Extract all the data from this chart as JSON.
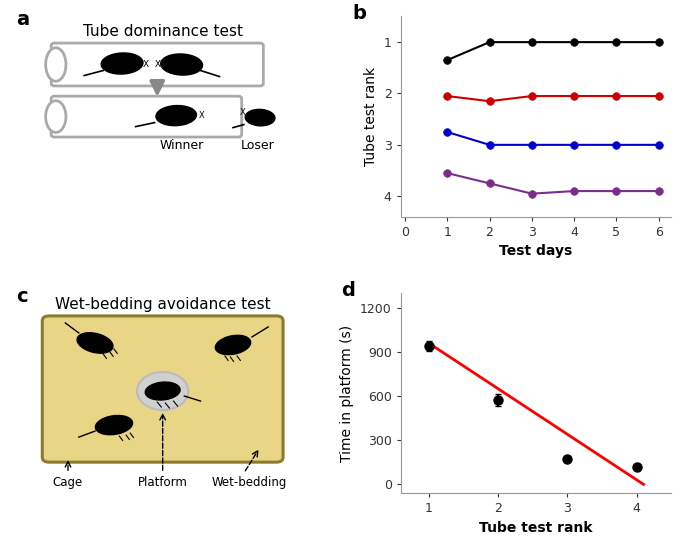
{
  "panel_b": {
    "days": [
      1,
      2,
      3,
      4,
      5,
      6
    ],
    "rank1": [
      1.35,
      1.0,
      1.0,
      1.0,
      1.0,
      1.0
    ],
    "rank2": [
      2.05,
      2.15,
      2.05,
      2.05,
      2.05,
      2.05
    ],
    "rank3": [
      2.75,
      3.0,
      3.0,
      3.0,
      3.0,
      3.0
    ],
    "rank4": [
      3.55,
      3.75,
      3.95,
      3.9,
      3.9,
      3.9
    ],
    "colors": [
      "#000000",
      "#cc0000",
      "#0000cc",
      "#7b2d8b"
    ],
    "yticks": [
      1,
      2,
      3,
      4
    ],
    "xticks": [
      0,
      1,
      2,
      3,
      4,
      5,
      6
    ],
    "xlabel": "Test days",
    "ylabel": "Tube test rank",
    "ylim": [
      4.4,
      0.5
    ],
    "xlim": [
      -0.1,
      6.3
    ]
  },
  "panel_d": {
    "ranks": [
      1,
      2,
      3,
      4
    ],
    "times": [
      940,
      575,
      175,
      120
    ],
    "errors": [
      35,
      40,
      0,
      0
    ],
    "fit_x": [
      1.0,
      4.1
    ],
    "fit_y": [
      960,
      0
    ],
    "xlabel": "Tube test rank",
    "ylabel": "Time in platform (s)",
    "yticks": [
      0,
      300,
      600,
      900,
      1200
    ],
    "xticks": [
      1,
      2,
      3,
      4
    ],
    "ylim": [
      -60,
      1300
    ],
    "xlim": [
      0.6,
      4.5
    ]
  },
  "panel_a": {
    "title": "Tube dominance test",
    "winner_label": "Winner",
    "loser_label": "Loser"
  },
  "panel_c": {
    "title": "Wet-bedding avoidance test",
    "labels": [
      "Cage",
      "Platform",
      "Wet-bedding"
    ],
    "bg_color": "#e8d585",
    "border_color": "#8B7a30"
  },
  "label_fontsize": 14,
  "axis_fontsize": 10,
  "tick_fontsize": 9
}
